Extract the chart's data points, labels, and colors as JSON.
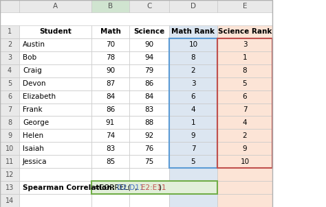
{
  "col_headers": [
    "",
    "A",
    "B",
    "C",
    "D",
    "E"
  ],
  "row_count": 15,
  "header_row": [
    "Student",
    "Math",
    "Science",
    "Math Rank",
    "Science Rank"
  ],
  "students": [
    "Austin",
    "Bob",
    "Craig",
    "Devon",
    "Elizabeth",
    "Frank",
    "George",
    "Helen",
    "Isaiah",
    "Jessica"
  ],
  "math": [
    70,
    78,
    90,
    87,
    84,
    86,
    91,
    74,
    83,
    85
  ],
  "science": [
    90,
    94,
    79,
    86,
    84,
    83,
    88,
    92,
    76,
    75
  ],
  "math_rank": [
    10,
    8,
    2,
    3,
    6,
    4,
    1,
    9,
    7,
    5
  ],
  "science_rank": [
    3,
    1,
    8,
    5,
    6,
    7,
    4,
    2,
    9,
    10
  ],
  "formula_label": "Spearman Correlation:",
  "col_header_bg": "#e9e9e9",
  "col_header_selected_bg": "#d0e4d0",
  "row_header_bg": "#f2f2f2",
  "cell_bg": "#ffffff",
  "d_col_bg": "#dce6f1",
  "e_col_bg": "#fce4d6",
  "grid_color": "#d0d0d0",
  "border_d_color": "#5b9bd5",
  "border_e_color": "#c0504d",
  "formula_cell_bg": "#e2efda",
  "formula_border_color": "#70ad47",
  "formula_blue": "#4472c4",
  "formula_red": "#c0504d"
}
